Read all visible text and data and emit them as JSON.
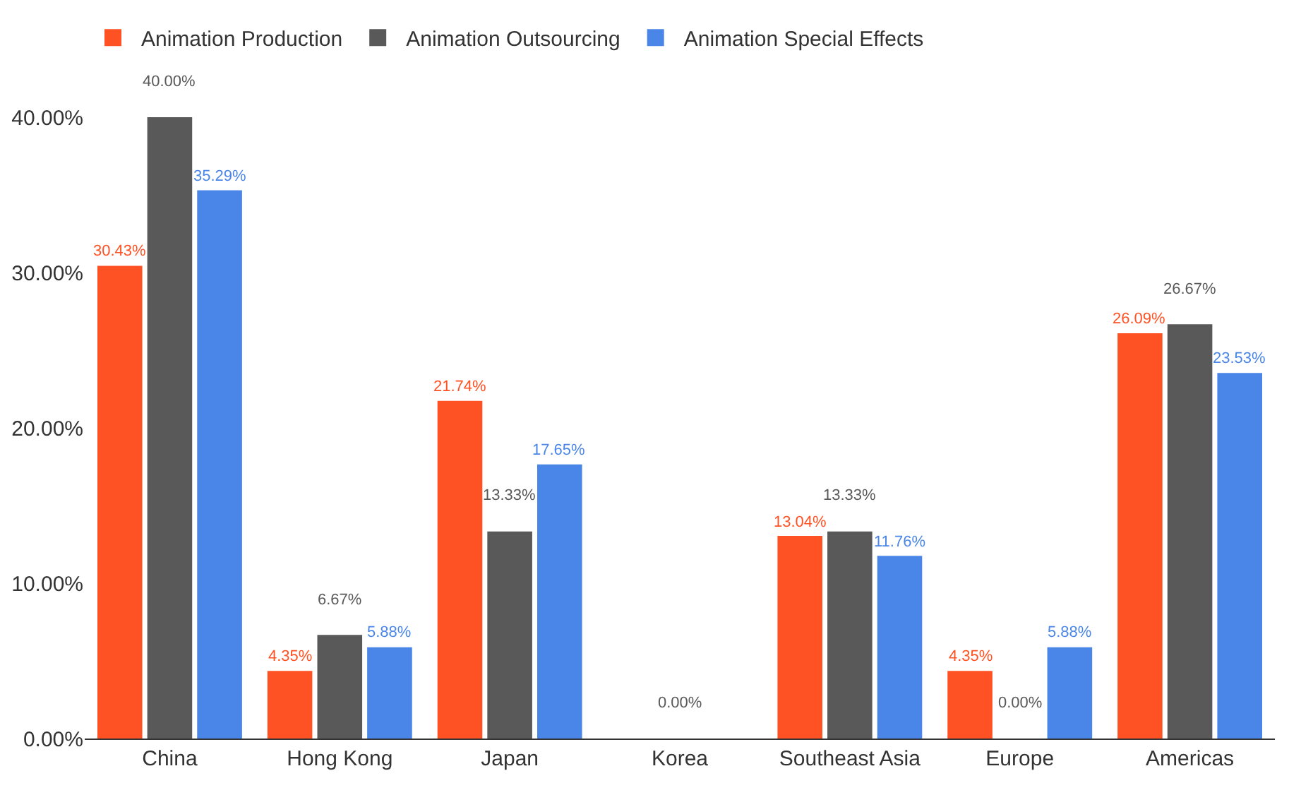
{
  "chart_data": {
    "type": "bar",
    "categories": [
      "China",
      "Hong Kong",
      "Japan",
      "Korea",
      "Southeast Asia",
      "Europe",
      "Americas"
    ],
    "series": [
      {
        "name": "Animation Production",
        "color": "#ff5224",
        "values": [
          30.43,
          4.35,
          21.74,
          null,
          13.04,
          4.35,
          26.09
        ],
        "value_labels": [
          "30.43%",
          "4.35%",
          "21.74%",
          null,
          "13.04%",
          "4.35%",
          "26.09%"
        ]
      },
      {
        "name": "Animation Outsourcing",
        "color": "#595959",
        "values": [
          40,
          6.67,
          13.33,
          0,
          13.33,
          0,
          26.67
        ],
        "value_labels": [
          "40.00%",
          "6.67%",
          "13.33%",
          "0.00%",
          "13.33%",
          "0.00%",
          "26.67%"
        ]
      },
      {
        "name": "Animation Special Effects",
        "color": "#4a86e8",
        "values": [
          35.29,
          5.88,
          17.65,
          null,
          11.76,
          5.88,
          23.53
        ],
        "value_labels": [
          "35.29%",
          "5.88%",
          "17.65%",
          null,
          "11.76%",
          "5.88%",
          "23.53%"
        ]
      }
    ],
    "ylim": [
      0,
      40
    ],
    "yticks": [
      {
        "value": 0,
        "label": "0.00%"
      },
      {
        "value": 10,
        "label": "10.00%"
      },
      {
        "value": 20,
        "label": "20.00%"
      },
      {
        "value": 30,
        "label": "30.00%"
      },
      {
        "value": 40,
        "label": "40.00%"
      }
    ],
    "grid": false,
    "legend": "top left"
  }
}
